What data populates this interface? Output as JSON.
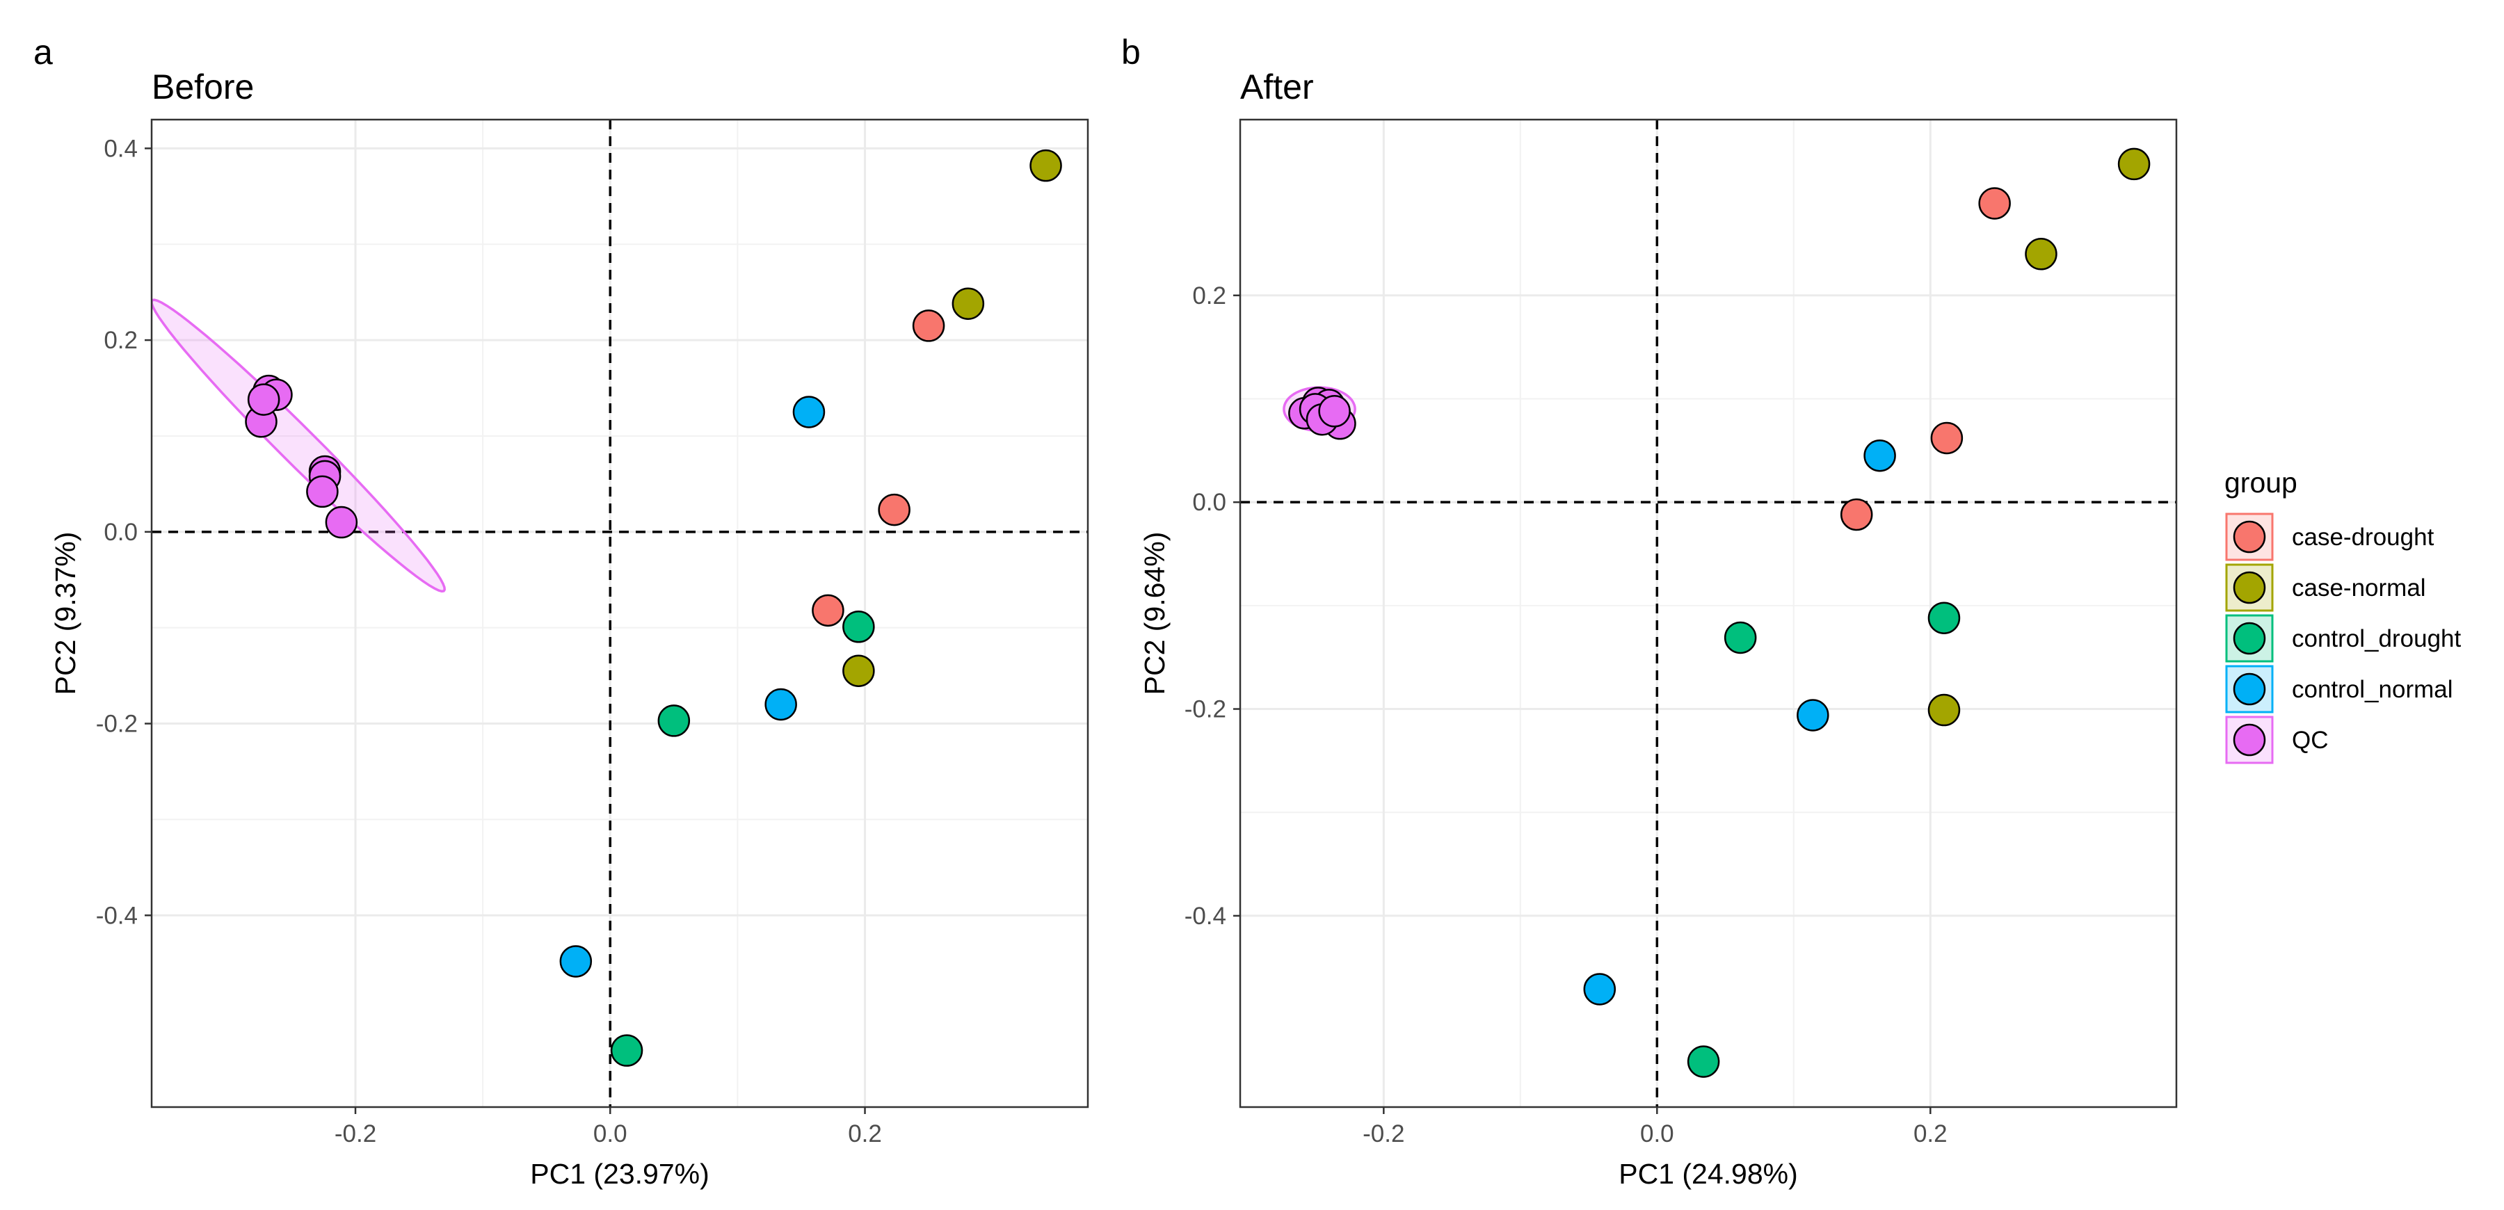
{
  "chart_data": [
    {
      "type": "scatter",
      "panel_letter": "a",
      "title": "Before",
      "xlabel": "PC1 (23.97%)",
      "ylabel": "PC2 (9.37%)",
      "xlim": [
        -0.36,
        0.375
      ],
      "ylim": [
        -0.6,
        0.43
      ],
      "xticks": [
        {
          "value": -0.2,
          "label": "-0.2"
        },
        {
          "value": 0.0,
          "label": "0.0"
        },
        {
          "value": 0.2,
          "label": "0.2"
        }
      ],
      "yticks": [
        {
          "value": 0.4,
          "label": "0.4"
        },
        {
          "value": 0.2,
          "label": "0.2"
        },
        {
          "value": 0.0,
          "label": "0.0"
        },
        {
          "value": -0.2,
          "label": "-0.2"
        },
        {
          "value": -0.4,
          "label": "-0.4"
        }
      ],
      "grid": true,
      "reference_lines": {
        "x": 0,
        "y": 0,
        "style": "dashed"
      },
      "series": [
        {
          "name": "case-drought",
          "points": [
            [
              0.25,
              0.215
            ],
            [
              0.223,
              0.023
            ],
            [
              0.171,
              -0.082
            ]
          ]
        },
        {
          "name": "case-normal",
          "points": [
            [
              0.342,
              0.382
            ],
            [
              0.281,
              0.238
            ],
            [
              0.195,
              -0.145
            ]
          ]
        },
        {
          "name": "control_drought",
          "points": [
            [
              0.195,
              -0.099
            ],
            [
              0.05,
              -0.197
            ],
            [
              0.013,
              -0.541
            ]
          ]
        },
        {
          "name": "control_normal",
          "points": [
            [
              0.156,
              0.125
            ],
            [
              0.134,
              -0.18
            ],
            [
              -0.027,
              -0.448
            ]
          ]
        },
        {
          "name": "QC",
          "points": [
            [
              -0.268,
              0.147
            ],
            [
              -0.262,
              0.143
            ],
            [
              -0.274,
              0.115
            ],
            [
              -0.272,
              0.138
            ],
            [
              -0.224,
              0.063
            ],
            [
              -0.224,
              0.058
            ],
            [
              -0.226,
              0.042
            ],
            [
              -0.211,
              0.01
            ]
          ]
        }
      ],
      "ellipses": [
        {
          "group": "QC",
          "center": [
            -0.245,
            0.09
          ],
          "semi_axes": [
            0.19,
            0.016
          ],
          "angle_deg": -53
        }
      ]
    },
    {
      "type": "scatter",
      "panel_letter": "b",
      "title": "After",
      "xlabel": "PC1 (24.98%)",
      "ylabel": "PC2 (9.64%)",
      "xlim": [
        -0.305,
        0.38
      ],
      "ylim": [
        -0.585,
        0.37
      ],
      "xticks": [
        {
          "value": -0.2,
          "label": "-0.2"
        },
        {
          "value": 0.0,
          "label": "0.0"
        },
        {
          "value": 0.2,
          "label": "0.2"
        }
      ],
      "yticks": [
        {
          "value": 0.2,
          "label": "0.2"
        },
        {
          "value": 0.0,
          "label": "0.0"
        },
        {
          "value": -0.2,
          "label": "-0.2"
        },
        {
          "value": -0.4,
          "label": "-0.4"
        }
      ],
      "grid": true,
      "reference_lines": {
        "x": 0,
        "y": 0,
        "style": "dashed"
      },
      "series": [
        {
          "name": "case-drought",
          "points": [
            [
              0.247,
              0.289
            ],
            [
              0.212,
              0.062
            ],
            [
              0.146,
              -0.012
            ]
          ]
        },
        {
          "name": "case-normal",
          "points": [
            [
              0.349,
              0.327
            ],
            [
              0.281,
              0.24
            ],
            [
              0.21,
              -0.201
            ]
          ]
        },
        {
          "name": "control_drought",
          "points": [
            [
              0.21,
              -0.112
            ],
            [
              0.061,
              -0.131
            ],
            [
              0.034,
              -0.541
            ]
          ]
        },
        {
          "name": "control_normal",
          "points": [
            [
              0.163,
              0.045
            ],
            [
              0.114,
              -0.206
            ],
            [
              -0.042,
              -0.471
            ]
          ]
        },
        {
          "name": "QC",
          "points": [
            [
              -0.258,
              0.086
            ],
            [
              -0.248,
              0.096
            ],
            [
              -0.24,
              0.094
            ],
            [
              -0.232,
              0.076
            ],
            [
              -0.25,
              0.09
            ],
            [
              -0.245,
              0.08
            ],
            [
              -0.236,
              0.088
            ]
          ]
        }
      ],
      "ellipses": [
        {
          "group": "QC",
          "center": [
            -0.247,
            0.09
          ],
          "semi_axes": [
            0.026,
            0.021
          ],
          "angle_deg": 0
        }
      ]
    }
  ],
  "legend": {
    "title": "group",
    "placement": "right",
    "items": [
      {
        "label": "case-drought",
        "color": "#F8766D"
      },
      {
        "label": "case-normal",
        "color": "#A3A500"
      },
      {
        "label": "control_drought",
        "color": "#00BF7D"
      },
      {
        "label": "control_normal",
        "color": "#00B0F6"
      },
      {
        "label": "QC",
        "color": "#E76BF3"
      }
    ]
  }
}
